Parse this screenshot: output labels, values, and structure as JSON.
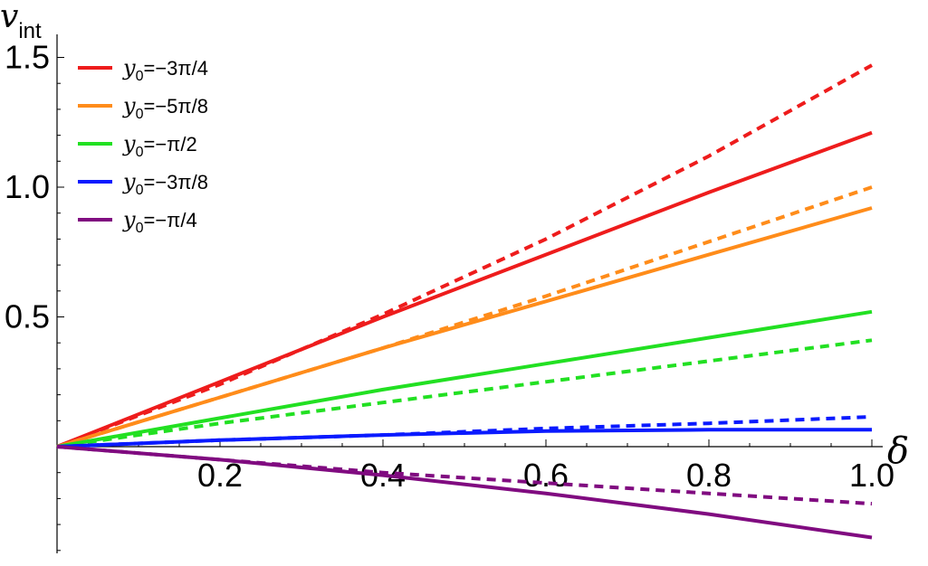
{
  "chart_data": {
    "type": "line",
    "title": "",
    "xlabel": "δ",
    "ylabel_main": "v",
    "ylabel_sub": "int",
    "xlim": [
      0,
      1.0
    ],
    "ylim": [
      -0.55,
      1.55
    ],
    "x_ticks": [
      {
        "value": 0.2,
        "label": "0.2"
      },
      {
        "value": 0.4,
        "label": "0.4"
      },
      {
        "value": 0.6,
        "label": "0.6"
      },
      {
        "value": 0.8,
        "label": "0.8"
      },
      {
        "value": 1.0,
        "label": "1.0"
      }
    ],
    "y_ticks": [
      {
        "value": 0.5,
        "label": "0.5"
      },
      {
        "value": 1.0,
        "label": "1.0"
      },
      {
        "value": 1.5,
        "label": "1.5"
      }
    ],
    "legend_position": "top-left",
    "grid": false,
    "series": [
      {
        "name": "y0=−3π/4",
        "legend_main": "y",
        "legend_sub": "0",
        "legend_rest": "=−3π/4",
        "color": "#ee1c1c",
        "solid": {
          "x": [
            0,
            0.2,
            0.4,
            0.6,
            0.8,
            1.0
          ],
          "y": [
            0,
            0.25,
            0.5,
            0.74,
            0.98,
            1.21
          ]
        },
        "dashed": {
          "x": [
            0,
            0.2,
            0.4,
            0.6,
            0.8,
            1.0
          ],
          "y": [
            0,
            0.24,
            0.51,
            0.8,
            1.12,
            1.47
          ]
        }
      },
      {
        "name": "y0=−5π/8",
        "legend_main": "y",
        "legend_sub": "0",
        "legend_rest": "=−5π/8",
        "color": "#ff8c1a",
        "solid": {
          "x": [
            0,
            0.2,
            0.4,
            0.6,
            0.8,
            1.0
          ],
          "y": [
            0,
            0.19,
            0.38,
            0.56,
            0.74,
            0.92
          ]
        },
        "dashed": {
          "x": [
            0,
            0.2,
            0.4,
            0.6,
            0.8,
            1.0
          ],
          "y": [
            0,
            0.19,
            0.38,
            0.58,
            0.79,
            1.0
          ]
        }
      },
      {
        "name": "y0=−π/2",
        "legend_main": "y",
        "legend_sub": "0",
        "legend_rest": "=−π/2",
        "color": "#22e022",
        "solid": {
          "x": [
            0,
            0.2,
            0.4,
            0.6,
            0.8,
            1.0
          ],
          "y": [
            0,
            0.11,
            0.22,
            0.32,
            0.42,
            0.52
          ]
        },
        "dashed": {
          "x": [
            0,
            0.2,
            0.4,
            0.6,
            0.8,
            1.0
          ],
          "y": [
            0,
            0.09,
            0.17,
            0.25,
            0.33,
            0.41
          ]
        }
      },
      {
        "name": "y0=−3π/8",
        "legend_main": "y",
        "legend_sub": "0",
        "legend_rest": "=−3π/8",
        "color": "#0a1aff",
        "solid": {
          "x": [
            0,
            0.2,
            0.4,
            0.6,
            0.8,
            1.0
          ],
          "y": [
            0,
            0.025,
            0.045,
            0.06,
            0.065,
            0.065
          ]
        },
        "dashed": {
          "x": [
            0,
            0.2,
            0.4,
            0.6,
            0.8,
            1.0
          ],
          "y": [
            0,
            0.025,
            0.045,
            0.07,
            0.09,
            0.115
          ]
        }
      },
      {
        "name": "y0=−π/4",
        "legend_main": "y",
        "legend_sub": "0",
        "legend_rest": "=−π/4",
        "color": "#800b80",
        "solid": {
          "x": [
            0,
            0.2,
            0.4,
            0.6,
            0.8,
            1.0
          ],
          "y": [
            0,
            -0.05,
            -0.11,
            -0.18,
            -0.26,
            -0.35
          ]
        },
        "dashed": {
          "x": [
            0,
            0.2,
            0.4,
            0.6,
            0.8,
            1.0
          ],
          "y": [
            0,
            -0.05,
            -0.1,
            -0.14,
            -0.18,
            -0.22
          ]
        }
      }
    ]
  }
}
